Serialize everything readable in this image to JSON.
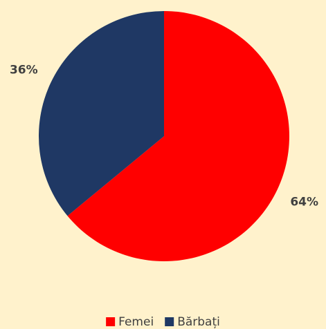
{
  "chart_data": {
    "type": "pie",
    "categories": [
      "Femei",
      "Bărbați"
    ],
    "values": [
      64,
      36
    ],
    "value_labels": [
      "64%",
      "36%"
    ],
    "colors": [
      "#ff0000",
      "#1f3864"
    ],
    "start_angle": 0,
    "direction": "clockwise",
    "legend": "bottom"
  }
}
